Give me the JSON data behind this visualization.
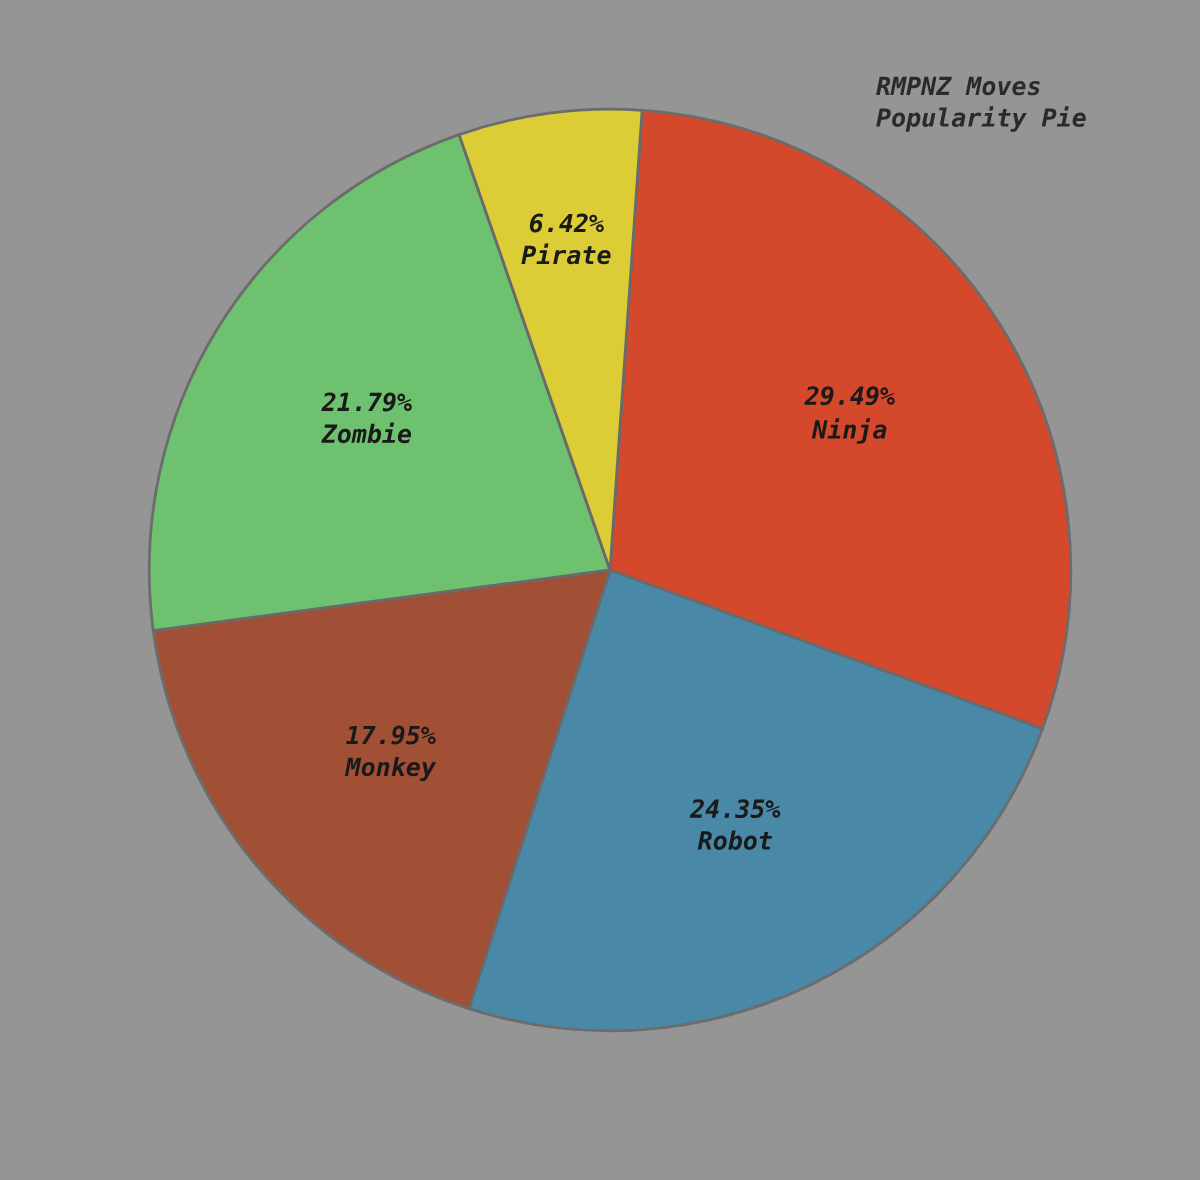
{
  "chart_data": {
    "type": "pie",
    "title": "RMPNZ Moves Popularity Pie",
    "categories": [
      "Ninja",
      "Robot",
      "Monkey",
      "Zombie",
      "Pirate"
    ],
    "values": [
      29.49,
      24.35,
      17.95,
      21.79,
      6.42
    ],
    "value_labels": [
      "29.49%",
      "24.35%",
      "17.95%",
      "21.79%",
      "6.42%"
    ],
    "colors": [
      "#d84427",
      "#4588a8",
      "#a24d30",
      "#6cc46c",
      "#e0cf30"
    ]
  }
}
